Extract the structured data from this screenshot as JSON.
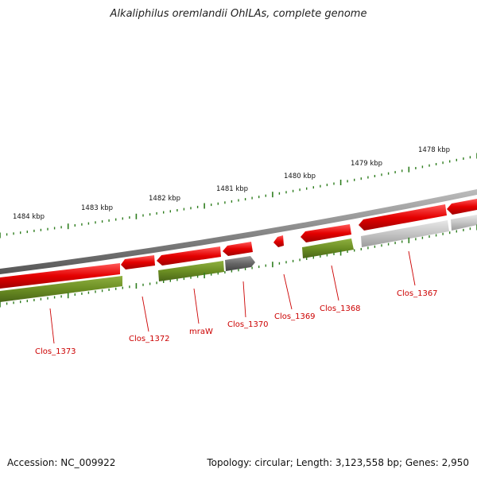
{
  "title": "Alkaliphilus oremlandii OhILAs, complete genome",
  "colors": {
    "forward_gene": "#ee1111",
    "reverse_gene": "#6b8e23",
    "unknown_gene": "#777777",
    "pseudo_gene": "#c8c8c8",
    "backbone": "#8a8a8a",
    "tick": "#2e7d1e",
    "label": "#cc0000"
  },
  "ruler": {
    "labels": [
      "1484 kbp",
      "1483 kbp",
      "1482 kbp",
      "1481 kbp",
      "1480 kbp",
      "1479 kbp",
      "1478 kbp"
    ]
  },
  "genes": [
    {
      "name": "Clos_1373"
    },
    {
      "name": "Clos_1372"
    },
    {
      "name": "mraW"
    },
    {
      "name": "Clos_1370"
    },
    {
      "name": "Clos_1369"
    },
    {
      "name": "Clos_1368"
    },
    {
      "name": "Clos_1367"
    }
  ],
  "footer": {
    "accession": "Accession: NC_009922",
    "summary": "Topology: circular; Length: 3,123,558 bp; Genes: 2,950"
  }
}
